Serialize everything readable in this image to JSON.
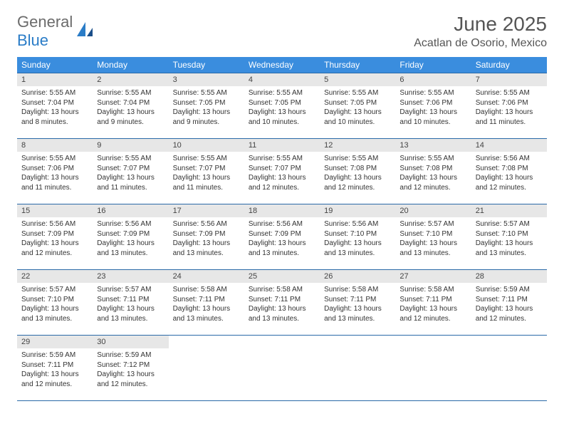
{
  "logo": {
    "part1": "General",
    "part2": "Blue"
  },
  "title": "June 2025",
  "location": "Acatlan de Osorio, Mexico",
  "colors": {
    "header_bg": "#3a8dde",
    "header_text": "#ffffff",
    "daynum_bg": "#e7e7e7",
    "border": "#2a6aa8",
    "logo_gray": "#6b6b6b",
    "logo_blue": "#2a7cc7"
  },
  "day_labels": [
    "Sunday",
    "Monday",
    "Tuesday",
    "Wednesday",
    "Thursday",
    "Friday",
    "Saturday"
  ],
  "weeks": [
    [
      {
        "n": "1",
        "sr": "Sunrise: 5:55 AM",
        "ss": "Sunset: 7:04 PM",
        "d1": "Daylight: 13 hours",
        "d2": "and 8 minutes."
      },
      {
        "n": "2",
        "sr": "Sunrise: 5:55 AM",
        "ss": "Sunset: 7:04 PM",
        "d1": "Daylight: 13 hours",
        "d2": "and 9 minutes."
      },
      {
        "n": "3",
        "sr": "Sunrise: 5:55 AM",
        "ss": "Sunset: 7:05 PM",
        "d1": "Daylight: 13 hours",
        "d2": "and 9 minutes."
      },
      {
        "n": "4",
        "sr": "Sunrise: 5:55 AM",
        "ss": "Sunset: 7:05 PM",
        "d1": "Daylight: 13 hours",
        "d2": "and 10 minutes."
      },
      {
        "n": "5",
        "sr": "Sunrise: 5:55 AM",
        "ss": "Sunset: 7:05 PM",
        "d1": "Daylight: 13 hours",
        "d2": "and 10 minutes."
      },
      {
        "n": "6",
        "sr": "Sunrise: 5:55 AM",
        "ss": "Sunset: 7:06 PM",
        "d1": "Daylight: 13 hours",
        "d2": "and 10 minutes."
      },
      {
        "n": "7",
        "sr": "Sunrise: 5:55 AM",
        "ss": "Sunset: 7:06 PM",
        "d1": "Daylight: 13 hours",
        "d2": "and 11 minutes."
      }
    ],
    [
      {
        "n": "8",
        "sr": "Sunrise: 5:55 AM",
        "ss": "Sunset: 7:06 PM",
        "d1": "Daylight: 13 hours",
        "d2": "and 11 minutes."
      },
      {
        "n": "9",
        "sr": "Sunrise: 5:55 AM",
        "ss": "Sunset: 7:07 PM",
        "d1": "Daylight: 13 hours",
        "d2": "and 11 minutes."
      },
      {
        "n": "10",
        "sr": "Sunrise: 5:55 AM",
        "ss": "Sunset: 7:07 PM",
        "d1": "Daylight: 13 hours",
        "d2": "and 11 minutes."
      },
      {
        "n": "11",
        "sr": "Sunrise: 5:55 AM",
        "ss": "Sunset: 7:07 PM",
        "d1": "Daylight: 13 hours",
        "d2": "and 12 minutes."
      },
      {
        "n": "12",
        "sr": "Sunrise: 5:55 AM",
        "ss": "Sunset: 7:08 PM",
        "d1": "Daylight: 13 hours",
        "d2": "and 12 minutes."
      },
      {
        "n": "13",
        "sr": "Sunrise: 5:55 AM",
        "ss": "Sunset: 7:08 PM",
        "d1": "Daylight: 13 hours",
        "d2": "and 12 minutes."
      },
      {
        "n": "14",
        "sr": "Sunrise: 5:56 AM",
        "ss": "Sunset: 7:08 PM",
        "d1": "Daylight: 13 hours",
        "d2": "and 12 minutes."
      }
    ],
    [
      {
        "n": "15",
        "sr": "Sunrise: 5:56 AM",
        "ss": "Sunset: 7:09 PM",
        "d1": "Daylight: 13 hours",
        "d2": "and 12 minutes."
      },
      {
        "n": "16",
        "sr": "Sunrise: 5:56 AM",
        "ss": "Sunset: 7:09 PM",
        "d1": "Daylight: 13 hours",
        "d2": "and 13 minutes."
      },
      {
        "n": "17",
        "sr": "Sunrise: 5:56 AM",
        "ss": "Sunset: 7:09 PM",
        "d1": "Daylight: 13 hours",
        "d2": "and 13 minutes."
      },
      {
        "n": "18",
        "sr": "Sunrise: 5:56 AM",
        "ss": "Sunset: 7:09 PM",
        "d1": "Daylight: 13 hours",
        "d2": "and 13 minutes."
      },
      {
        "n": "19",
        "sr": "Sunrise: 5:56 AM",
        "ss": "Sunset: 7:10 PM",
        "d1": "Daylight: 13 hours",
        "d2": "and 13 minutes."
      },
      {
        "n": "20",
        "sr": "Sunrise: 5:57 AM",
        "ss": "Sunset: 7:10 PM",
        "d1": "Daylight: 13 hours",
        "d2": "and 13 minutes."
      },
      {
        "n": "21",
        "sr": "Sunrise: 5:57 AM",
        "ss": "Sunset: 7:10 PM",
        "d1": "Daylight: 13 hours",
        "d2": "and 13 minutes."
      }
    ],
    [
      {
        "n": "22",
        "sr": "Sunrise: 5:57 AM",
        "ss": "Sunset: 7:10 PM",
        "d1": "Daylight: 13 hours",
        "d2": "and 13 minutes."
      },
      {
        "n": "23",
        "sr": "Sunrise: 5:57 AM",
        "ss": "Sunset: 7:11 PM",
        "d1": "Daylight: 13 hours",
        "d2": "and 13 minutes."
      },
      {
        "n": "24",
        "sr": "Sunrise: 5:58 AM",
        "ss": "Sunset: 7:11 PM",
        "d1": "Daylight: 13 hours",
        "d2": "and 13 minutes."
      },
      {
        "n": "25",
        "sr": "Sunrise: 5:58 AM",
        "ss": "Sunset: 7:11 PM",
        "d1": "Daylight: 13 hours",
        "d2": "and 13 minutes."
      },
      {
        "n": "26",
        "sr": "Sunrise: 5:58 AM",
        "ss": "Sunset: 7:11 PM",
        "d1": "Daylight: 13 hours",
        "d2": "and 13 minutes."
      },
      {
        "n": "27",
        "sr": "Sunrise: 5:58 AM",
        "ss": "Sunset: 7:11 PM",
        "d1": "Daylight: 13 hours",
        "d2": "and 12 minutes."
      },
      {
        "n": "28",
        "sr": "Sunrise: 5:59 AM",
        "ss": "Sunset: 7:11 PM",
        "d1": "Daylight: 13 hours",
        "d2": "and 12 minutes."
      }
    ],
    [
      {
        "n": "29",
        "sr": "Sunrise: 5:59 AM",
        "ss": "Sunset: 7:11 PM",
        "d1": "Daylight: 13 hours",
        "d2": "and 12 minutes."
      },
      {
        "n": "30",
        "sr": "Sunrise: 5:59 AM",
        "ss": "Sunset: 7:12 PM",
        "d1": "Daylight: 13 hours",
        "d2": "and 12 minutes."
      },
      null,
      null,
      null,
      null,
      null
    ]
  ]
}
